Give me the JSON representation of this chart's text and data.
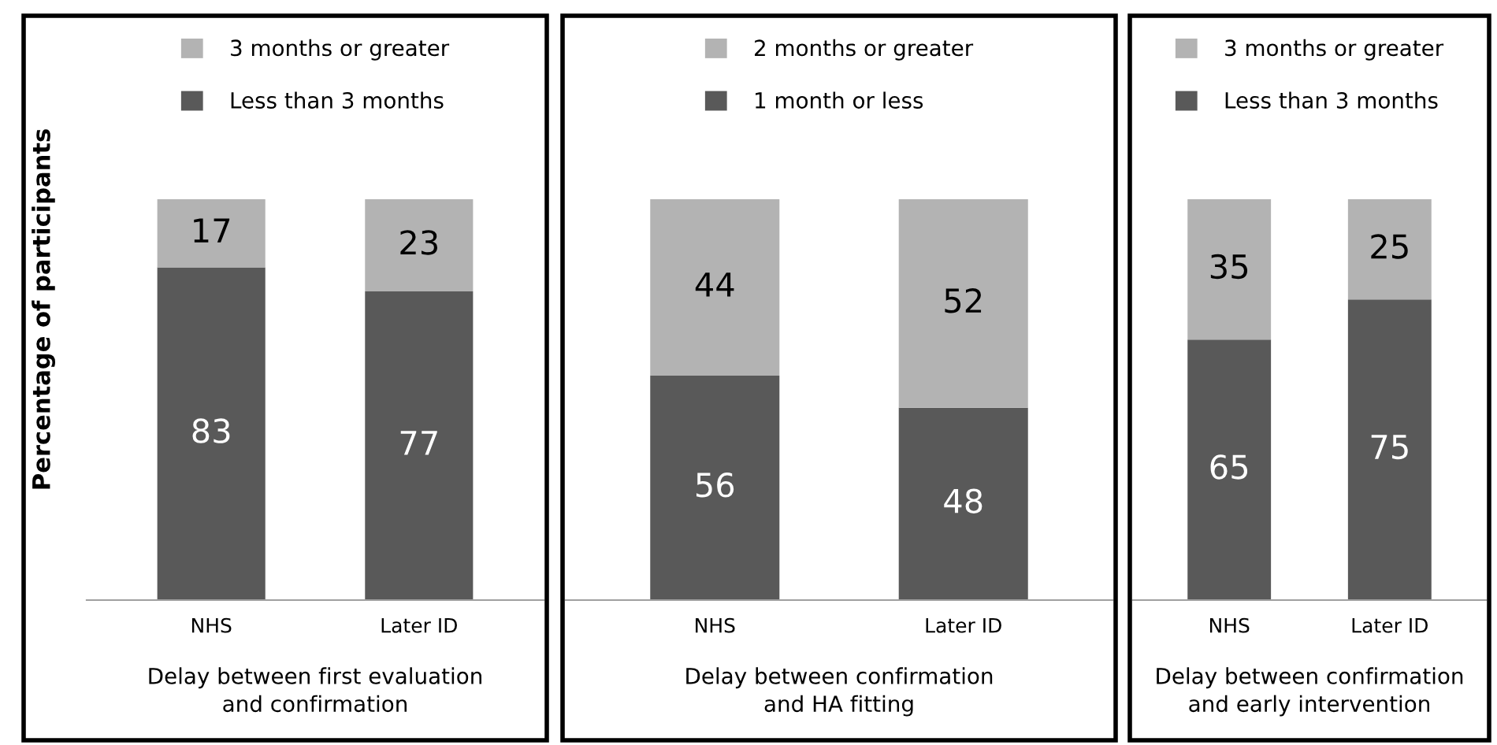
{
  "chart_data": [
    {
      "type": "bar",
      "stacked": true,
      "ylabel": "Percentage of participants",
      "xlabel": "Delay between first evaluation\nand confirmation",
      "categories": [
        "NHS",
        "Later ID"
      ],
      "data_labels": true,
      "legend": "top",
      "tick_labels": "x",
      "series": [
        {
          "name": "Less than 3 months",
          "color": "#595959",
          "values": [
            83,
            77
          ]
        },
        {
          "name": "3 months or greater",
          "color": "#b3b3b3",
          "values": [
            17,
            23
          ]
        }
      ]
    },
    {
      "type": "bar",
      "stacked": true,
      "xlabel": "Delay between confirmation\nand HA fitting",
      "categories": [
        "NHS",
        "Later ID"
      ],
      "data_labels": true,
      "legend": "top",
      "tick_labels": "x",
      "series": [
        {
          "name": "1 month or less",
          "color": "#595959",
          "values": [
            56,
            48
          ]
        },
        {
          "name": "2 months or greater",
          "color": "#b3b3b3",
          "values": [
            44,
            52
          ]
        }
      ]
    },
    {
      "type": "bar",
      "stacked": true,
      "xlabel": "Delay between confirmation\nand early intervention",
      "categories": [
        "NHS",
        "Later ID"
      ],
      "data_labels": true,
      "legend": "top",
      "tick_labels": "x",
      "series": [
        {
          "name": "Less than 3 months",
          "color": "#595959",
          "values": [
            65,
            75
          ]
        },
        {
          "name": "3 months or greater",
          "color": "#b3b3b3",
          "values": [
            35,
            25
          ]
        }
      ]
    }
  ]
}
